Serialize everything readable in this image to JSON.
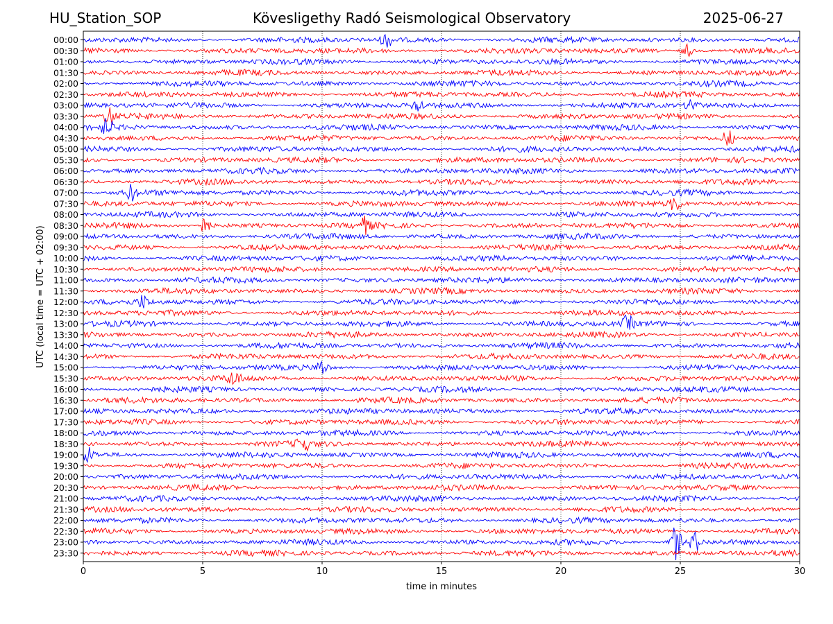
{
  "header": {
    "station": "HU_Station_SOP",
    "observatory": "Kövesligethy Radó Seismological Observatory",
    "date": "2025-06-27"
  },
  "chart_data": {
    "type": "line",
    "title": "Kövesligethy Radó Seismological Observatory",
    "xlabel": "time in minutes",
    "ylabel": "UTC (local time = UTC + 02:00)",
    "xlim": [
      0,
      30
    ],
    "xticks": [
      0,
      5,
      10,
      15,
      20,
      25,
      30
    ],
    "grid": "vertical dotted at x ticks",
    "row_labels": [
      "00:00",
      "00:30",
      "01:00",
      "01:30",
      "02:00",
      "02:30",
      "03:00",
      "03:30",
      "04:00",
      "04:30",
      "05:00",
      "05:30",
      "06:00",
      "06:30",
      "07:00",
      "07:30",
      "08:00",
      "08:30",
      "09:00",
      "09:30",
      "10:00",
      "10:30",
      "11:00",
      "11:30",
      "12:00",
      "12:30",
      "13:00",
      "13:30",
      "14:00",
      "14:30",
      "15:00",
      "15:30",
      "16:00",
      "16:30",
      "17:00",
      "17:30",
      "18:00",
      "18:30",
      "19:00",
      "19:30",
      "20:00",
      "20:30",
      "21:00",
      "21:30",
      "22:00",
      "22:30",
      "23:00",
      "23:30"
    ],
    "colors": [
      "#0000ff",
      "#ff0000"
    ],
    "notable_events": [
      {
        "row": "00:00",
        "minute": 12.7,
        "amplitude": 1.4
      },
      {
        "row": "00:30",
        "minute": 25.3,
        "amplitude": 1.3
      },
      {
        "row": "03:00",
        "minute": 14.0,
        "amplitude": 1.3
      },
      {
        "row": "03:00",
        "minute": 25.5,
        "amplitude": 1.4
      },
      {
        "row": "03:30",
        "minute": 1.1,
        "amplitude": 1.8
      },
      {
        "row": "04:00",
        "minute": 1.0,
        "amplitude": 1.5
      },
      {
        "row": "04:30",
        "minute": 27.0,
        "amplitude": 1.6
      },
      {
        "row": "07:00",
        "minute": 2.0,
        "amplitude": 1.5
      },
      {
        "row": "07:30",
        "minute": 24.8,
        "amplitude": 1.5
      },
      {
        "row": "08:30",
        "minute": 5.1,
        "amplitude": 1.6
      },
      {
        "row": "08:30",
        "minute": 11.8,
        "amplitude": 1.4
      },
      {
        "row": "12:00",
        "minute": 2.5,
        "amplitude": 1.2
      },
      {
        "row": "13:00",
        "minute": 22.8,
        "amplitude": 1.5
      },
      {
        "row": "15:00",
        "minute": 10.0,
        "amplitude": 1.4
      },
      {
        "row": "15:30",
        "minute": 6.3,
        "amplitude": 1.3
      },
      {
        "row": "18:30",
        "minute": 9.2,
        "amplitude": 1.5
      },
      {
        "row": "19:00",
        "minute": 0.2,
        "amplitude": 1.4
      },
      {
        "row": "23:00",
        "minute": 24.8,
        "amplitude": 3.5
      },
      {
        "row": "23:00",
        "minute": 25.6,
        "amplitude": 2.0
      }
    ]
  }
}
